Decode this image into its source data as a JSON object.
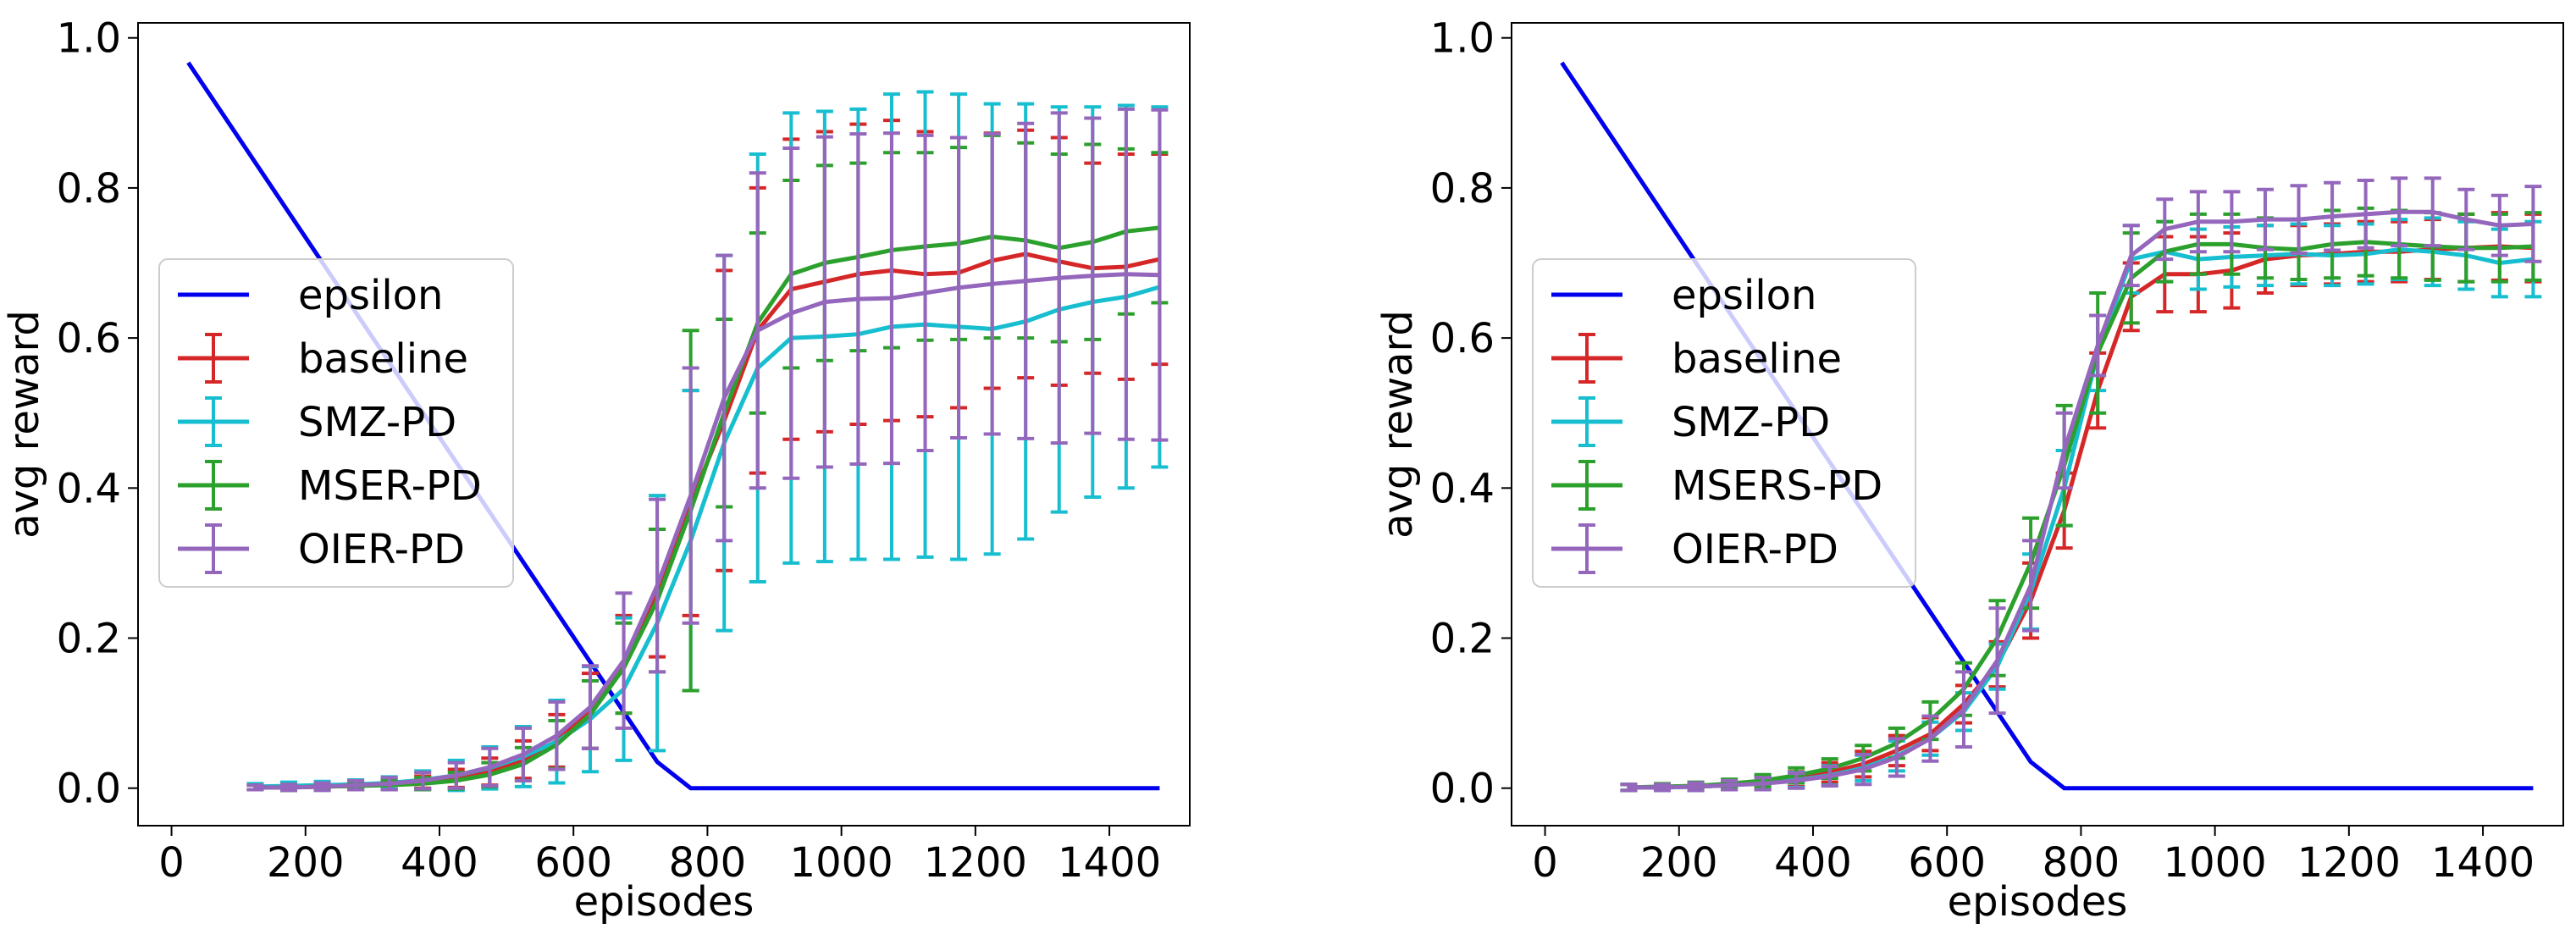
{
  "chart_data": [
    {
      "type": "line",
      "title": "",
      "xlabel": "episodes",
      "ylabel": "avg reward",
      "xlim": [
        -50,
        1520
      ],
      "ylim": [
        -0.05,
        1.02
      ],
      "xticks": [
        0,
        200,
        400,
        600,
        800,
        1000,
        1200,
        1400
      ],
      "xtick_labels": [
        "0",
        "200",
        "400",
        "600",
        "800",
        "1000",
        "1200",
        "1400"
      ],
      "yticks": [
        0.0,
        0.2,
        0.4,
        0.6,
        0.8,
        1.0
      ],
      "ytick_labels": [
        "0.0",
        "0.2",
        "0.4",
        "0.6",
        "0.8",
        "1.0"
      ],
      "grid": false,
      "legend_position": "center-left",
      "x": [
        125,
        175,
        225,
        275,
        325,
        375,
        425,
        475,
        525,
        575,
        625,
        675,
        725,
        775,
        825,
        875,
        925,
        975,
        1025,
        1075,
        1125,
        1175,
        1225,
        1275,
        1325,
        1375,
        1425,
        1475
      ],
      "epsilon": {
        "name": "epsilon",
        "color": "#0000ee",
        "x": [
          25,
          725,
          775,
          1475
        ],
        "values": [
          0.967,
          0.035,
          0.0,
          0.0
        ]
      },
      "series": [
        {
          "name": "baseline",
          "color": "#d62728",
          "values": [
            0.001,
            0.001,
            0.002,
            0.003,
            0.005,
            0.008,
            0.013,
            0.022,
            0.038,
            0.063,
            0.103,
            0.165,
            0.26,
            0.38,
            0.49,
            0.61,
            0.665,
            0.675,
            0.685,
            0.69,
            0.685,
            0.687,
            0.703,
            0.712,
            0.702,
            0.693,
            0.695,
            0.705
          ],
          "err": [
            0.003,
            0.004,
            0.004,
            0.005,
            0.006,
            0.008,
            0.012,
            0.018,
            0.025,
            0.035,
            0.05,
            0.065,
            0.085,
            0.15,
            0.2,
            0.19,
            0.2,
            0.2,
            0.2,
            0.2,
            0.19,
            0.18,
            0.17,
            0.165,
            0.165,
            0.14,
            0.15,
            0.14
          ]
        },
        {
          "name": "SMZ-PD",
          "color": "#17becf",
          "values": [
            0.002,
            0.003,
            0.004,
            0.005,
            0.007,
            0.011,
            0.017,
            0.027,
            0.042,
            0.062,
            0.092,
            0.132,
            0.22,
            0.33,
            0.46,
            0.56,
            0.6,
            0.602,
            0.605,
            0.615,
            0.618,
            0.615,
            0.612,
            0.622,
            0.638,
            0.648,
            0.655,
            0.668
          ],
          "err": [
            0.004,
            0.005,
            0.005,
            0.006,
            0.008,
            0.012,
            0.02,
            0.028,
            0.04,
            0.055,
            0.07,
            0.095,
            0.17,
            0.2,
            0.25,
            0.285,
            0.3,
            0.3,
            0.3,
            0.31,
            0.31,
            0.31,
            0.3,
            0.29,
            0.27,
            0.26,
            0.255,
            0.24
          ]
        },
        {
          "name": "MSER-PD",
          "color": "#2ca02c",
          "values": [
            0.001,
            0.001,
            0.002,
            0.003,
            0.004,
            0.006,
            0.01,
            0.018,
            0.032,
            0.058,
            0.098,
            0.16,
            0.25,
            0.37,
            0.5,
            0.62,
            0.685,
            0.7,
            0.708,
            0.717,
            0.722,
            0.726,
            0.735,
            0.73,
            0.72,
            0.728,
            0.742,
            0.747
          ],
          "err": [
            0.003,
            0.004,
            0.004,
            0.005,
            0.006,
            0.008,
            0.011,
            0.016,
            0.022,
            0.032,
            0.045,
            0.06,
            0.095,
            0.24,
            0.125,
            0.12,
            0.125,
            0.13,
            0.125,
            0.13,
            0.125,
            0.128,
            0.135,
            0.13,
            0.125,
            0.13,
            0.11,
            0.1
          ]
        },
        {
          "name": "OIER-PD",
          "color": "#9467bd",
          "values": [
            0.001,
            0.001,
            0.002,
            0.004,
            0.006,
            0.01,
            0.017,
            0.028,
            0.045,
            0.07,
            0.108,
            0.17,
            0.27,
            0.39,
            0.52,
            0.61,
            0.633,
            0.648,
            0.652,
            0.653,
            0.66,
            0.667,
            0.672,
            0.676,
            0.68,
            0.683,
            0.685,
            0.684
          ],
          "err": [
            0.003,
            0.004,
            0.005,
            0.006,
            0.008,
            0.011,
            0.017,
            0.025,
            0.035,
            0.045,
            0.055,
            0.09,
            0.115,
            0.17,
            0.19,
            0.21,
            0.22,
            0.22,
            0.22,
            0.22,
            0.21,
            0.2,
            0.2,
            0.21,
            0.22,
            0.21,
            0.22,
            0.22
          ]
        }
      ]
    },
    {
      "type": "line",
      "title": "",
      "xlabel": "episodes",
      "ylabel": "avg reward",
      "xlim": [
        -50,
        1520
      ],
      "ylim": [
        -0.05,
        1.02
      ],
      "xticks": [
        0,
        200,
        400,
        600,
        800,
        1000,
        1200,
        1400
      ],
      "xtick_labels": [
        "0",
        "200",
        "400",
        "600",
        "800",
        "1000",
        "1200",
        "1400"
      ],
      "yticks": [
        0.0,
        0.2,
        0.4,
        0.6,
        0.8,
        1.0
      ],
      "ytick_labels": [
        "0.0",
        "0.2",
        "0.4",
        "0.6",
        "0.8",
        "1.0"
      ],
      "grid": false,
      "legend_position": "center-left",
      "x": [
        125,
        175,
        225,
        275,
        325,
        375,
        425,
        475,
        525,
        575,
        625,
        675,
        725,
        775,
        825,
        875,
        925,
        975,
        1025,
        1075,
        1125,
        1175,
        1225,
        1275,
        1325,
        1375,
        1425,
        1475
      ],
      "epsilon": {
        "name": "epsilon",
        "color": "#0000ee",
        "x": [
          25,
          725,
          775,
          1475
        ],
        "values": [
          0.967,
          0.035,
          0.0,
          0.0
        ]
      },
      "series": [
        {
          "name": "baseline",
          "color": "#d62728",
          "values": [
            0.001,
            0.001,
            0.002,
            0.004,
            0.007,
            0.012,
            0.021,
            0.032,
            0.05,
            0.072,
            0.112,
            0.165,
            0.25,
            0.37,
            0.53,
            0.655,
            0.685,
            0.685,
            0.69,
            0.705,
            0.71,
            0.712,
            0.715,
            0.715,
            0.718,
            0.72,
            0.722,
            0.72
          ],
          "err": [
            0.004,
            0.004,
            0.005,
            0.006,
            0.008,
            0.01,
            0.013,
            0.017,
            0.02,
            0.022,
            0.025,
            0.03,
            0.05,
            0.05,
            0.05,
            0.045,
            0.05,
            0.05,
            0.05,
            0.045,
            0.04,
            0.04,
            0.04,
            0.04,
            0.04,
            0.045,
            0.045,
            0.045
          ]
        },
        {
          "name": "SMZ-PD",
          "color": "#17becf",
          "values": [
            0.001,
            0.001,
            0.002,
            0.004,
            0.007,
            0.011,
            0.017,
            0.027,
            0.043,
            0.066,
            0.102,
            0.162,
            0.262,
            0.4,
            0.58,
            0.705,
            0.715,
            0.705,
            0.708,
            0.71,
            0.712,
            0.71,
            0.712,
            0.718,
            0.715,
            0.71,
            0.7,
            0.705
          ],
          "err": [
            0.004,
            0.004,
            0.005,
            0.006,
            0.008,
            0.01,
            0.013,
            0.017,
            0.02,
            0.022,
            0.025,
            0.03,
            0.05,
            0.05,
            0.05,
            0.045,
            0.04,
            0.04,
            0.04,
            0.04,
            0.04,
            0.04,
            0.04,
            0.04,
            0.045,
            0.045,
            0.045,
            0.05
          ]
        },
        {
          "name": "MSERS-PD",
          "color": "#2ca02c",
          "values": [
            0.001,
            0.002,
            0.003,
            0.006,
            0.01,
            0.017,
            0.026,
            0.04,
            0.06,
            0.09,
            0.132,
            0.2,
            0.3,
            0.43,
            0.58,
            0.68,
            0.715,
            0.725,
            0.725,
            0.72,
            0.718,
            0.725,
            0.728,
            0.725,
            0.722,
            0.72,
            0.72,
            0.722
          ],
          "err": [
            0.004,
            0.004,
            0.005,
            0.006,
            0.008,
            0.01,
            0.013,
            0.017,
            0.02,
            0.025,
            0.035,
            0.05,
            0.06,
            0.08,
            0.08,
            0.06,
            0.04,
            0.04,
            0.04,
            0.04,
            0.04,
            0.045,
            0.045,
            0.045,
            0.045,
            0.045,
            0.045,
            0.045
          ]
        },
        {
          "name": "OIER-PD",
          "color": "#9467bd",
          "values": [
            0.001,
            0.001,
            0.002,
            0.004,
            0.006,
            0.01,
            0.016,
            0.025,
            0.041,
            0.066,
            0.105,
            0.17,
            0.27,
            0.45,
            0.59,
            0.71,
            0.745,
            0.755,
            0.755,
            0.758,
            0.758,
            0.762,
            0.765,
            0.768,
            0.768,
            0.758,
            0.75,
            0.752
          ],
          "err": [
            0.004,
            0.004,
            0.005,
            0.006,
            0.008,
            0.01,
            0.013,
            0.02,
            0.025,
            0.03,
            0.05,
            0.07,
            0.06,
            0.05,
            0.04,
            0.04,
            0.04,
            0.04,
            0.04,
            0.04,
            0.045,
            0.045,
            0.045,
            0.045,
            0.045,
            0.04,
            0.04,
            0.05
          ]
        }
      ]
    }
  ]
}
